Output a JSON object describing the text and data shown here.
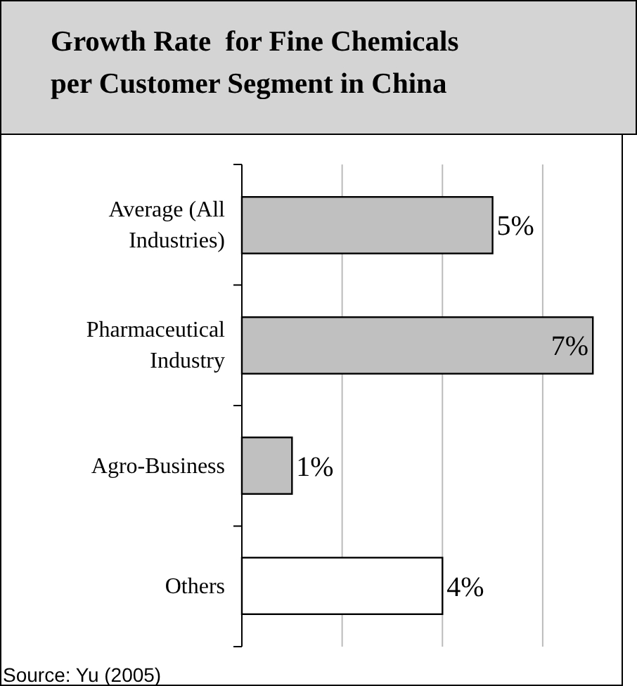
{
  "chart_data": {
    "type": "bar",
    "orientation": "horizontal",
    "title": "Growth Rate  for Fine Chemicals\nper Customer Segment in China",
    "categories": [
      "Average (All\nIndustries)",
      "Pharmaceutical\nIndustry",
      "Agro-Business",
      "Others"
    ],
    "values": [
      5,
      7,
      1,
      4
    ],
    "colors": [
      "#c0c0c0",
      "#c0c0c0",
      "#c0c0c0",
      "#ffffff"
    ],
    "value_labels": [
      "5%",
      "7%",
      "1%",
      "4%"
    ],
    "xlim": [
      0,
      7.6
    ],
    "xticks": [
      {
        "value": 0,
        "label": null
      },
      {
        "value": 2,
        "label": null
      },
      {
        "value": 4,
        "label": null
      },
      {
        "value": 6,
        "label": null
      }
    ],
    "grid": "x",
    "tick_labels": "y",
    "annotations": [
      "Source: Yu  (2005)"
    ]
  }
}
